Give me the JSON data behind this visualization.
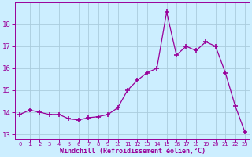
{
  "x": [
    0,
    1,
    2,
    3,
    4,
    5,
    6,
    7,
    8,
    9,
    10,
    11,
    12,
    13,
    14,
    15,
    16,
    17,
    18,
    19,
    20,
    21,
    22,
    23
  ],
  "y": [
    13.9,
    14.1,
    14.0,
    13.9,
    13.9,
    13.7,
    13.65,
    13.75,
    13.8,
    13.9,
    14.2,
    15.0,
    15.45,
    15.8,
    16.0,
    18.55,
    16.6,
    17.0,
    16.8,
    17.2,
    17.0,
    15.8,
    14.3,
    13.1
  ],
  "line_color": "#990099",
  "marker": "+",
  "bg_color": "#cceeff",
  "grid_color": "#aaccdd",
  "xlabel": "Windchill (Refroidissement éolien,°C)",
  "ylim": [
    12.8,
    19.0
  ],
  "yticks": [
    13,
    14,
    15,
    16,
    17,
    18
  ],
  "xlim": [
    -0.5,
    23.5
  ],
  "xticks": [
    0,
    1,
    2,
    3,
    4,
    5,
    6,
    7,
    8,
    9,
    10,
    11,
    12,
    13,
    14,
    15,
    16,
    17,
    18,
    19,
    20,
    21,
    22,
    23
  ]
}
